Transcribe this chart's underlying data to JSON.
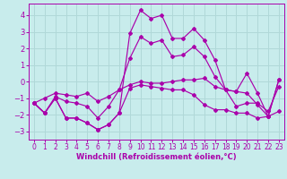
{
  "background_color": "#c8ecec",
  "grid_color": "#b0d8d8",
  "line_color": "#aa00aa",
  "xlabel": "Windchill (Refroidissement éolien,°C)",
  "xlim": [
    -0.5,
    23.5
  ],
  "ylim": [
    -3.5,
    4.7
  ],
  "yticks": [
    -3,
    -2,
    -1,
    0,
    1,
    2,
    3,
    4
  ],
  "xticks": [
    0,
    1,
    2,
    3,
    4,
    5,
    6,
    7,
    8,
    9,
    10,
    11,
    12,
    13,
    14,
    15,
    16,
    17,
    18,
    19,
    20,
    21,
    22,
    23
  ],
  "line1_x": [
    0,
    1,
    2,
    3,
    4,
    5,
    6,
    7,
    8,
    9,
    10,
    11,
    12,
    13,
    14,
    15,
    16,
    17,
    18,
    19,
    20,
    21,
    22,
    23
  ],
  "line1_y": [
    -1.3,
    -1.9,
    -1.0,
    -2.2,
    -2.2,
    -2.5,
    -2.9,
    -2.6,
    -1.9,
    -0.4,
    -0.2,
    -0.3,
    -0.4,
    -0.5,
    -0.5,
    -0.8,
    -1.4,
    -1.7,
    -1.7,
    -1.9,
    -1.9,
    -2.2,
    -2.1,
    -1.8
  ],
  "line2_x": [
    0,
    1,
    2,
    3,
    4,
    5,
    6,
    7,
    8,
    9,
    10,
    11,
    12,
    13,
    14,
    15,
    16,
    17,
    18,
    19,
    20,
    21,
    22,
    23
  ],
  "line2_y": [
    -1.3,
    -1.9,
    -1.0,
    -2.2,
    -2.2,
    -2.5,
    -2.9,
    -2.6,
    -1.9,
    2.9,
    4.3,
    3.8,
    4.0,
    2.6,
    2.6,
    3.2,
    2.5,
    1.3,
    -0.5,
    -0.6,
    0.5,
    -0.7,
    -2.1,
    0.1
  ],
  "line3_x": [
    0,
    1,
    2,
    3,
    4,
    5,
    6,
    7,
    8,
    9,
    10,
    11,
    12,
    13,
    14,
    15,
    16,
    17,
    18,
    19,
    20,
    21,
    22,
    23
  ],
  "line3_y": [
    -1.3,
    -1.9,
    -0.9,
    -1.2,
    -1.3,
    -1.5,
    -2.2,
    -1.5,
    -0.5,
    1.4,
    2.7,
    2.3,
    2.5,
    1.5,
    1.6,
    2.1,
    1.5,
    0.3,
    -0.5,
    -0.6,
    -0.7,
    -1.4,
    -2.1,
    0.1
  ],
  "line4_x": [
    0,
    1,
    2,
    3,
    4,
    5,
    6,
    7,
    8,
    9,
    10,
    11,
    12,
    13,
    14,
    15,
    16,
    17,
    18,
    19,
    20,
    21,
    22,
    23
  ],
  "line4_y": [
    -1.3,
    -1.0,
    -0.7,
    -0.8,
    -0.9,
    -0.7,
    -1.2,
    -0.9,
    -0.5,
    -0.2,
    0.0,
    -0.1,
    -0.1,
    0.0,
    0.1,
    0.1,
    0.2,
    -0.3,
    -0.5,
    -1.5,
    -1.3,
    -1.3,
    -1.8,
    -0.3
  ],
  "tick_fontsize": 5.5,
  "xlabel_fontsize": 6.0
}
